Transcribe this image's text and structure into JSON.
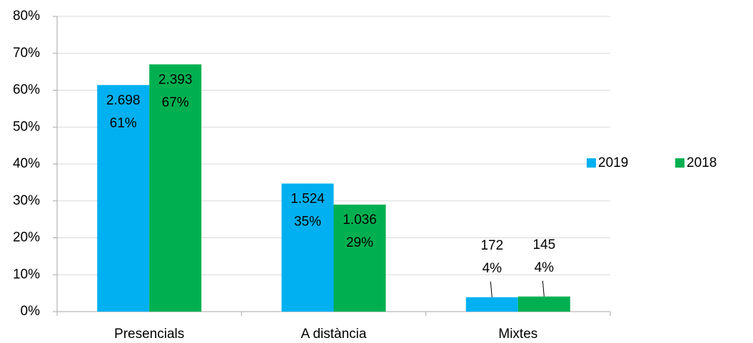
{
  "chart_data": {
    "type": "bar",
    "categories": [
      "Presencials",
      "A distància",
      "Mixtes"
    ],
    "series": [
      {
        "name": "2019",
        "color": "#00b0f0",
        "values": [
          61.4,
          34.7,
          3.9
        ],
        "value_labels": [
          "61%",
          "35%",
          "4%"
        ],
        "counts": [
          2698,
          1524,
          172
        ],
        "count_labels": [
          "2.698",
          "1.524",
          "172"
        ]
      },
      {
        "name": "2018",
        "color": "#00b050",
        "values": [
          67.0,
          29.0,
          4.1
        ],
        "value_labels": [
          "67%",
          "29%",
          "4%"
        ],
        "counts": [
          2393,
          1036,
          145
        ],
        "count_labels": [
          "2.393",
          "1.036",
          "145"
        ]
      }
    ],
    "ylim": [
      0,
      80
    ],
    "yticks": [
      {
        "value": 0,
        "label": "0%"
      },
      {
        "value": 10,
        "label": "10%"
      },
      {
        "value": 20,
        "label": "20%"
      },
      {
        "value": 30,
        "label": "30%"
      },
      {
        "value": 40,
        "label": "40%"
      },
      {
        "value": 50,
        "label": "50%"
      },
      {
        "value": 60,
        "label": "60%"
      },
      {
        "value": 70,
        "label": "70%"
      },
      {
        "value": 80,
        "label": "80%"
      }
    ],
    "grid": true,
    "legend": "right"
  }
}
